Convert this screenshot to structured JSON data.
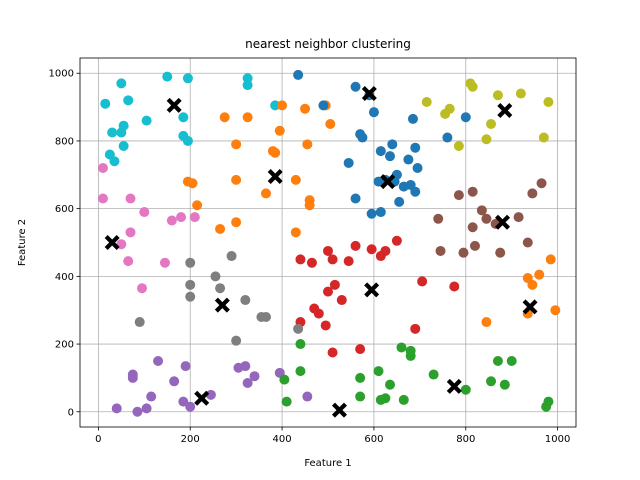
{
  "chart_data": {
    "type": "scatter",
    "title": "nearest neighbor clustering",
    "xlabel": "Feature 1",
    "ylabel": "Feature 2",
    "xlim": [
      -40,
      1040
    ],
    "ylim": [
      -45,
      1045
    ],
    "x_ticks": [
      0,
      200,
      400,
      600,
      800,
      1000
    ],
    "y_ticks": [
      0,
      200,
      400,
      600,
      800,
      1000
    ],
    "grid": true,
    "series": [
      {
        "color": "#17becf",
        "points": [
          [
            15,
            910
          ],
          [
            50,
            970
          ],
          [
            150,
            990
          ],
          [
            195,
            985
          ],
          [
            325,
            985
          ],
          [
            325,
            965
          ],
          [
            65,
            920
          ],
          [
            25,
            760
          ],
          [
            35,
            740
          ],
          [
            50,
            825
          ],
          [
            55,
            845
          ],
          [
            30,
            825
          ],
          [
            105,
            860
          ],
          [
            55,
            785
          ],
          [
            185,
            870
          ],
          [
            185,
            815
          ],
          [
            195,
            800
          ],
          [
            385,
            905
          ]
        ]
      },
      {
        "color": "#9467bd",
        "points": [
          [
            40,
            10
          ],
          [
            75,
            110
          ],
          [
            75,
            100
          ],
          [
            85,
            0
          ],
          [
            105,
            10
          ],
          [
            115,
            45
          ],
          [
            130,
            150
          ],
          [
            165,
            90
          ],
          [
            185,
            30
          ],
          [
            190,
            135
          ],
          [
            200,
            15
          ],
          [
            245,
            50
          ],
          [
            305,
            130
          ],
          [
            320,
            135
          ],
          [
            325,
            85
          ],
          [
            340,
            105
          ],
          [
            395,
            115
          ],
          [
            455,
            45
          ]
        ]
      },
      {
        "color": "#2ca02c",
        "points": [
          [
            405,
            95
          ],
          [
            410,
            30
          ],
          [
            440,
            120
          ],
          [
            440,
            200
          ],
          [
            570,
            100
          ],
          [
            570,
            45
          ],
          [
            615,
            35
          ],
          [
            610,
            120
          ],
          [
            625,
            40
          ],
          [
            635,
            80
          ],
          [
            660,
            190
          ],
          [
            665,
            35
          ],
          [
            680,
            165
          ],
          [
            680,
            180
          ],
          [
            730,
            110
          ],
          [
            800,
            65
          ],
          [
            870,
            150
          ],
          [
            855,
            90
          ],
          [
            885,
            80
          ],
          [
            900,
            150
          ],
          [
            975,
            15
          ],
          [
            980,
            30
          ]
        ]
      },
      {
        "color": "#ff7f0e",
        "points": [
          [
            195,
            680
          ],
          [
            205,
            675
          ],
          [
            215,
            610
          ],
          [
            265,
            540
          ],
          [
            275,
            870
          ],
          [
            300,
            685
          ],
          [
            300,
            560
          ],
          [
            300,
            790
          ],
          [
            325,
            870
          ],
          [
            365,
            645
          ],
          [
            380,
            770
          ],
          [
            385,
            765
          ],
          [
            395,
            830
          ],
          [
            400,
            905
          ],
          [
            430,
            685
          ],
          [
            430,
            530
          ],
          [
            450,
            895
          ],
          [
            455,
            790
          ],
          [
            460,
            625
          ],
          [
            460,
            610
          ],
          [
            495,
            905
          ],
          [
            505,
            850
          ],
          [
            845,
            265
          ],
          [
            935,
            395
          ],
          [
            935,
            290
          ],
          [
            945,
            375
          ],
          [
            960,
            405
          ],
          [
            985,
            450
          ],
          [
            995,
            300
          ]
        ]
      },
      {
        "color": "#1f77b4",
        "points": [
          [
            435,
            995
          ],
          [
            490,
            905
          ],
          [
            545,
            735
          ],
          [
            560,
            630
          ],
          [
            560,
            960
          ],
          [
            570,
            820
          ],
          [
            575,
            810
          ],
          [
            590,
            935
          ],
          [
            595,
            585
          ],
          [
            600,
            885
          ],
          [
            610,
            680
          ],
          [
            615,
            770
          ],
          [
            615,
            590
          ],
          [
            625,
            685
          ],
          [
            635,
            755
          ],
          [
            640,
            790
          ],
          [
            645,
            680
          ],
          [
            650,
            700
          ],
          [
            655,
            620
          ],
          [
            665,
            665
          ],
          [
            675,
            745
          ],
          [
            680,
            670
          ],
          [
            685,
            865
          ],
          [
            690,
            650
          ],
          [
            690,
            780
          ],
          [
            695,
            720
          ],
          [
            760,
            810
          ],
          [
            800,
            870
          ]
        ]
      },
      {
        "color": "#d62728",
        "points": [
          [
            440,
            450
          ],
          [
            440,
            265
          ],
          [
            465,
            440
          ],
          [
            470,
            305
          ],
          [
            480,
            290
          ],
          [
            495,
            255
          ],
          [
            500,
            355
          ],
          [
            500,
            475
          ],
          [
            510,
            450
          ],
          [
            510,
            175
          ],
          [
            515,
            375
          ],
          [
            530,
            330
          ],
          [
            545,
            445
          ],
          [
            560,
            490
          ],
          [
            570,
            185
          ],
          [
            595,
            480
          ],
          [
            615,
            460
          ],
          [
            625,
            475
          ],
          [
            650,
            505
          ],
          [
            690,
            245
          ],
          [
            705,
            385
          ],
          [
            775,
            370
          ]
        ]
      },
      {
        "color": "#8c564b",
        "points": [
          [
            740,
            570
          ],
          [
            745,
            475
          ],
          [
            785,
            640
          ],
          [
            795,
            470
          ],
          [
            815,
            545
          ],
          [
            815,
            650
          ],
          [
            820,
            490
          ],
          [
            835,
            595
          ],
          [
            845,
            570
          ],
          [
            865,
            555
          ],
          [
            875,
            470
          ],
          [
            915,
            575
          ],
          [
            935,
            500
          ],
          [
            945,
            645
          ],
          [
            965,
            675
          ]
        ]
      },
      {
        "color": "#e377c2",
        "points": [
          [
            10,
            720
          ],
          [
            10,
            630
          ],
          [
            50,
            495
          ],
          [
            65,
            445
          ],
          [
            70,
            630
          ],
          [
            70,
            530
          ],
          [
            95,
            365
          ],
          [
            100,
            590
          ],
          [
            145,
            440
          ],
          [
            160,
            565
          ],
          [
            180,
            575
          ],
          [
            210,
            575
          ]
        ]
      },
      {
        "color": "#7f7f7f",
        "points": [
          [
            90,
            265
          ],
          [
            200,
            440
          ],
          [
            200,
            375
          ],
          [
            200,
            340
          ],
          [
            255,
            400
          ],
          [
            265,
            365
          ],
          [
            290,
            460
          ],
          [
            300,
            210
          ],
          [
            320,
            330
          ],
          [
            355,
            280
          ],
          [
            365,
            280
          ],
          [
            435,
            245
          ]
        ]
      },
      {
        "color": "#bcbd22",
        "points": [
          [
            715,
            915
          ],
          [
            755,
            880
          ],
          [
            765,
            895
          ],
          [
            785,
            785
          ],
          [
            810,
            970
          ],
          [
            815,
            960
          ],
          [
            845,
            805
          ],
          [
            855,
            850
          ],
          [
            870,
            935
          ],
          [
            920,
            940
          ],
          [
            970,
            810
          ],
          [
            980,
            915
          ]
        ]
      }
    ],
    "centroids": [
      [
        165,
        905
      ],
      [
        30,
        500
      ],
      [
        270,
        315
      ],
      [
        225,
        40
      ],
      [
        525,
        5
      ],
      [
        595,
        360
      ],
      [
        775,
        75
      ],
      [
        940,
        310
      ],
      [
        880,
        560
      ],
      [
        885,
        890
      ],
      [
        590,
        940
      ],
      [
        385,
        695
      ],
      [
        630,
        680
      ]
    ]
  }
}
